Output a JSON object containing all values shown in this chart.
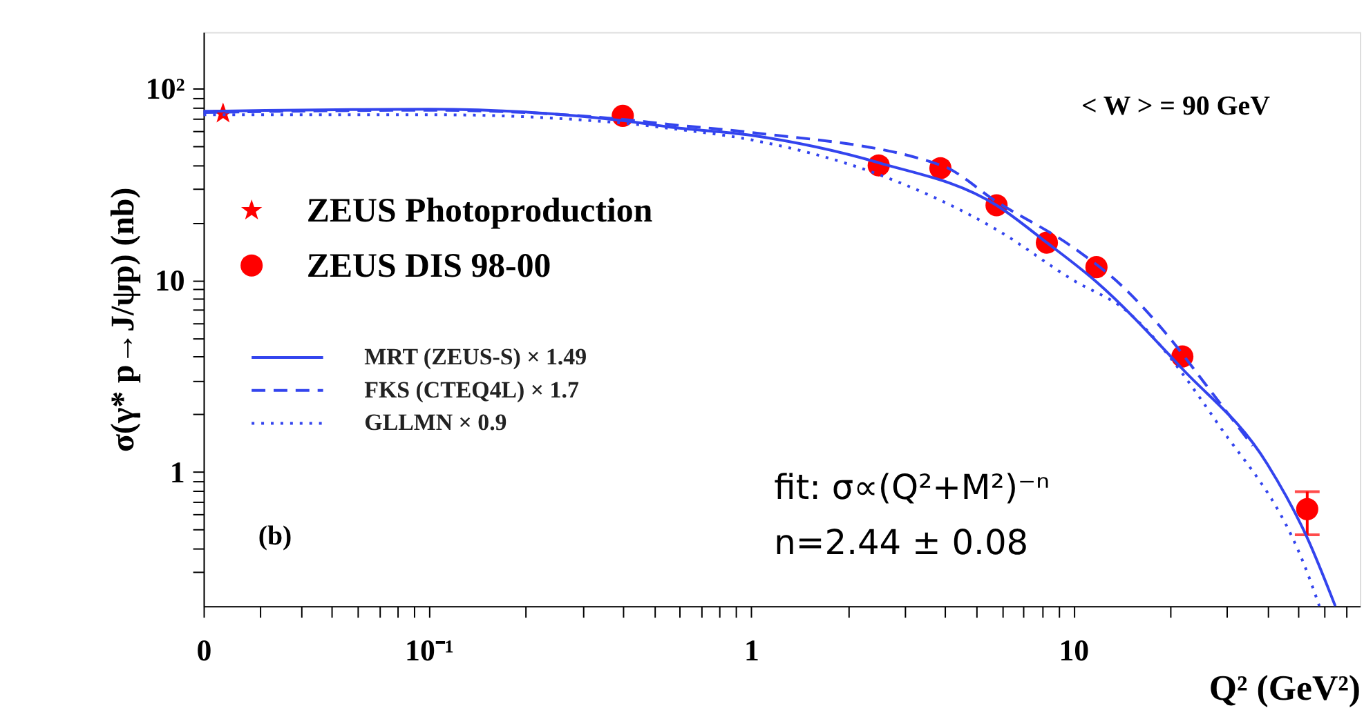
{
  "chart_data": {
    "type": "line",
    "xlabel": "Q² (GeV²)",
    "ylabel": "σ(γ* p→J/ψp) (nb)",
    "log": "xy",
    "grid": false,
    "legend": "top left",
    "xlim": [
      0.02,
      77.5
    ],
    "ylim": [
      0.2,
      197
    ],
    "xticks": [
      {
        "value": 0.02,
        "label": "0"
      },
      {
        "value": 0.03,
        "label": null
      },
      {
        "value": 0.04,
        "label": null
      },
      {
        "value": 0.05,
        "label": null
      },
      {
        "value": 0.06,
        "label": null
      },
      {
        "value": 0.07,
        "label": null
      },
      {
        "value": 0.08,
        "label": null
      },
      {
        "value": 0.09,
        "label": null
      },
      {
        "value": 0.1,
        "label": "10⁻¹"
      },
      {
        "value": 0.2,
        "label": null
      },
      {
        "value": 0.3,
        "label": null
      },
      {
        "value": 0.4,
        "label": null
      },
      {
        "value": 0.5,
        "label": null
      },
      {
        "value": 0.6,
        "label": null
      },
      {
        "value": 0.7,
        "label": null
      },
      {
        "value": 0.8,
        "label": null
      },
      {
        "value": 0.9,
        "label": null
      },
      1,
      {
        "value": 2,
        "label": null
      },
      {
        "value": 3,
        "label": null
      },
      {
        "value": 4,
        "label": null
      },
      {
        "value": 5,
        "label": null
      },
      {
        "value": 6,
        "label": null
      },
      {
        "value": 7,
        "label": null
      },
      {
        "value": 8,
        "label": null
      },
      {
        "value": 9,
        "label": null
      },
      10,
      {
        "value": 20,
        "label": null
      },
      {
        "value": 30,
        "label": null
      },
      {
        "value": 40,
        "label": null
      },
      {
        "value": 50,
        "label": null
      },
      {
        "value": 60,
        "label": null
      },
      {
        "value": 70,
        "label": null
      }
    ],
    "yticks": [
      {
        "value": 0.3,
        "label": null
      },
      {
        "value": 0.4,
        "label": null
      },
      {
        "value": 0.5,
        "label": null
      },
      {
        "value": 0.6,
        "label": null
      },
      {
        "value": 0.7,
        "label": null
      },
      {
        "value": 0.8,
        "label": null
      },
      {
        "value": 0.9,
        "label": null
      },
      1,
      {
        "value": 2,
        "label": null
      },
      {
        "value": 3,
        "label": null
      },
      {
        "value": 4,
        "label": null
      },
      {
        "value": 5,
        "label": null
      },
      {
        "value": 6,
        "label": null
      },
      {
        "value": 7,
        "label": null
      },
      {
        "value": 8,
        "label": null
      },
      {
        "value": 9,
        "label": null
      },
      10,
      {
        "value": 20,
        "label": null
      },
      {
        "value": 30,
        "label": null
      },
      {
        "value": 40,
        "label": null
      },
      {
        "value": 50,
        "label": null
      },
      {
        "value": 60,
        "label": null
      },
      {
        "value": 70,
        "label": null
      },
      {
        "value": 80,
        "label": null
      },
      {
        "value": 90,
        "label": null
      },
      {
        "value": 100,
        "label": "10²"
      }
    ],
    "series": [
      {
        "name": "ZEUS Photoproduction",
        "type": "scatter",
        "marker": "star",
        "color": "#ff0000",
        "x": [
          0.023
        ],
        "values": [
          74
        ]
      },
      {
        "name": "ZEUS DIS 98-00",
        "type": "scatter",
        "marker": "circle",
        "color": "#ff0000",
        "x": [
          0.4,
          2.49,
          3.87,
          5.78,
          8.28,
          11.8,
          21.8,
          53.2
        ],
        "values": [
          72,
          39.7,
          38.4,
          24.6,
          15.7,
          11.7,
          4.0,
          0.64
        ],
        "errors": [
          null,
          null,
          null,
          null,
          null,
          null,
          null,
          [
            0.47,
            0.79
          ]
        ]
      },
      {
        "name": "MRT (ZEUS-S) × 1.49",
        "line_style": "solid",
        "color": "#3344ee",
        "x": [
          0.02,
          0.1,
          0.4,
          0.556,
          1,
          2.49,
          5.78,
          8.28,
          11.8,
          21.8,
          40,
          53,
          65
        ],
        "values": [
          76,
          78,
          68,
          63,
          57,
          41,
          24.6,
          15.7,
          9.8,
          3.45,
          1.1,
          0.46,
          0.2
        ]
      },
      {
        "name": "FKS (CTEQ4L) × 1.7",
        "line_style": "dashed",
        "color": "#3344ee",
        "x": [
          0.02,
          0.1,
          0.4,
          0.556,
          1,
          3.9,
          5.8,
          10,
          14,
          19,
          26,
          36
        ],
        "values": [
          75,
          77,
          69,
          65,
          59,
          39.7,
          25.6,
          14.8,
          9.5,
          5.5,
          2.8,
          1.37
        ]
      },
      {
        "name": "GLLMN × 0.9",
        "line_style": "dotted",
        "color": "#3344ee",
        "x": [
          0.02,
          0.1,
          0.4,
          0.556,
          1,
          2.5,
          5.8,
          10,
          14.5,
          28,
          54,
          58
        ],
        "values": [
          73,
          73,
          66,
          62,
          54,
          35.5,
          18.3,
          10,
          7,
          1.8,
          0.28,
          0.2
        ]
      }
    ],
    "annotations": [
      "< W > = 90 GeV",
      "(b)",
      "fit: σ∝(Q²+M²)⁻ⁿ",
      "n=2.44 ± 0.08"
    ]
  }
}
